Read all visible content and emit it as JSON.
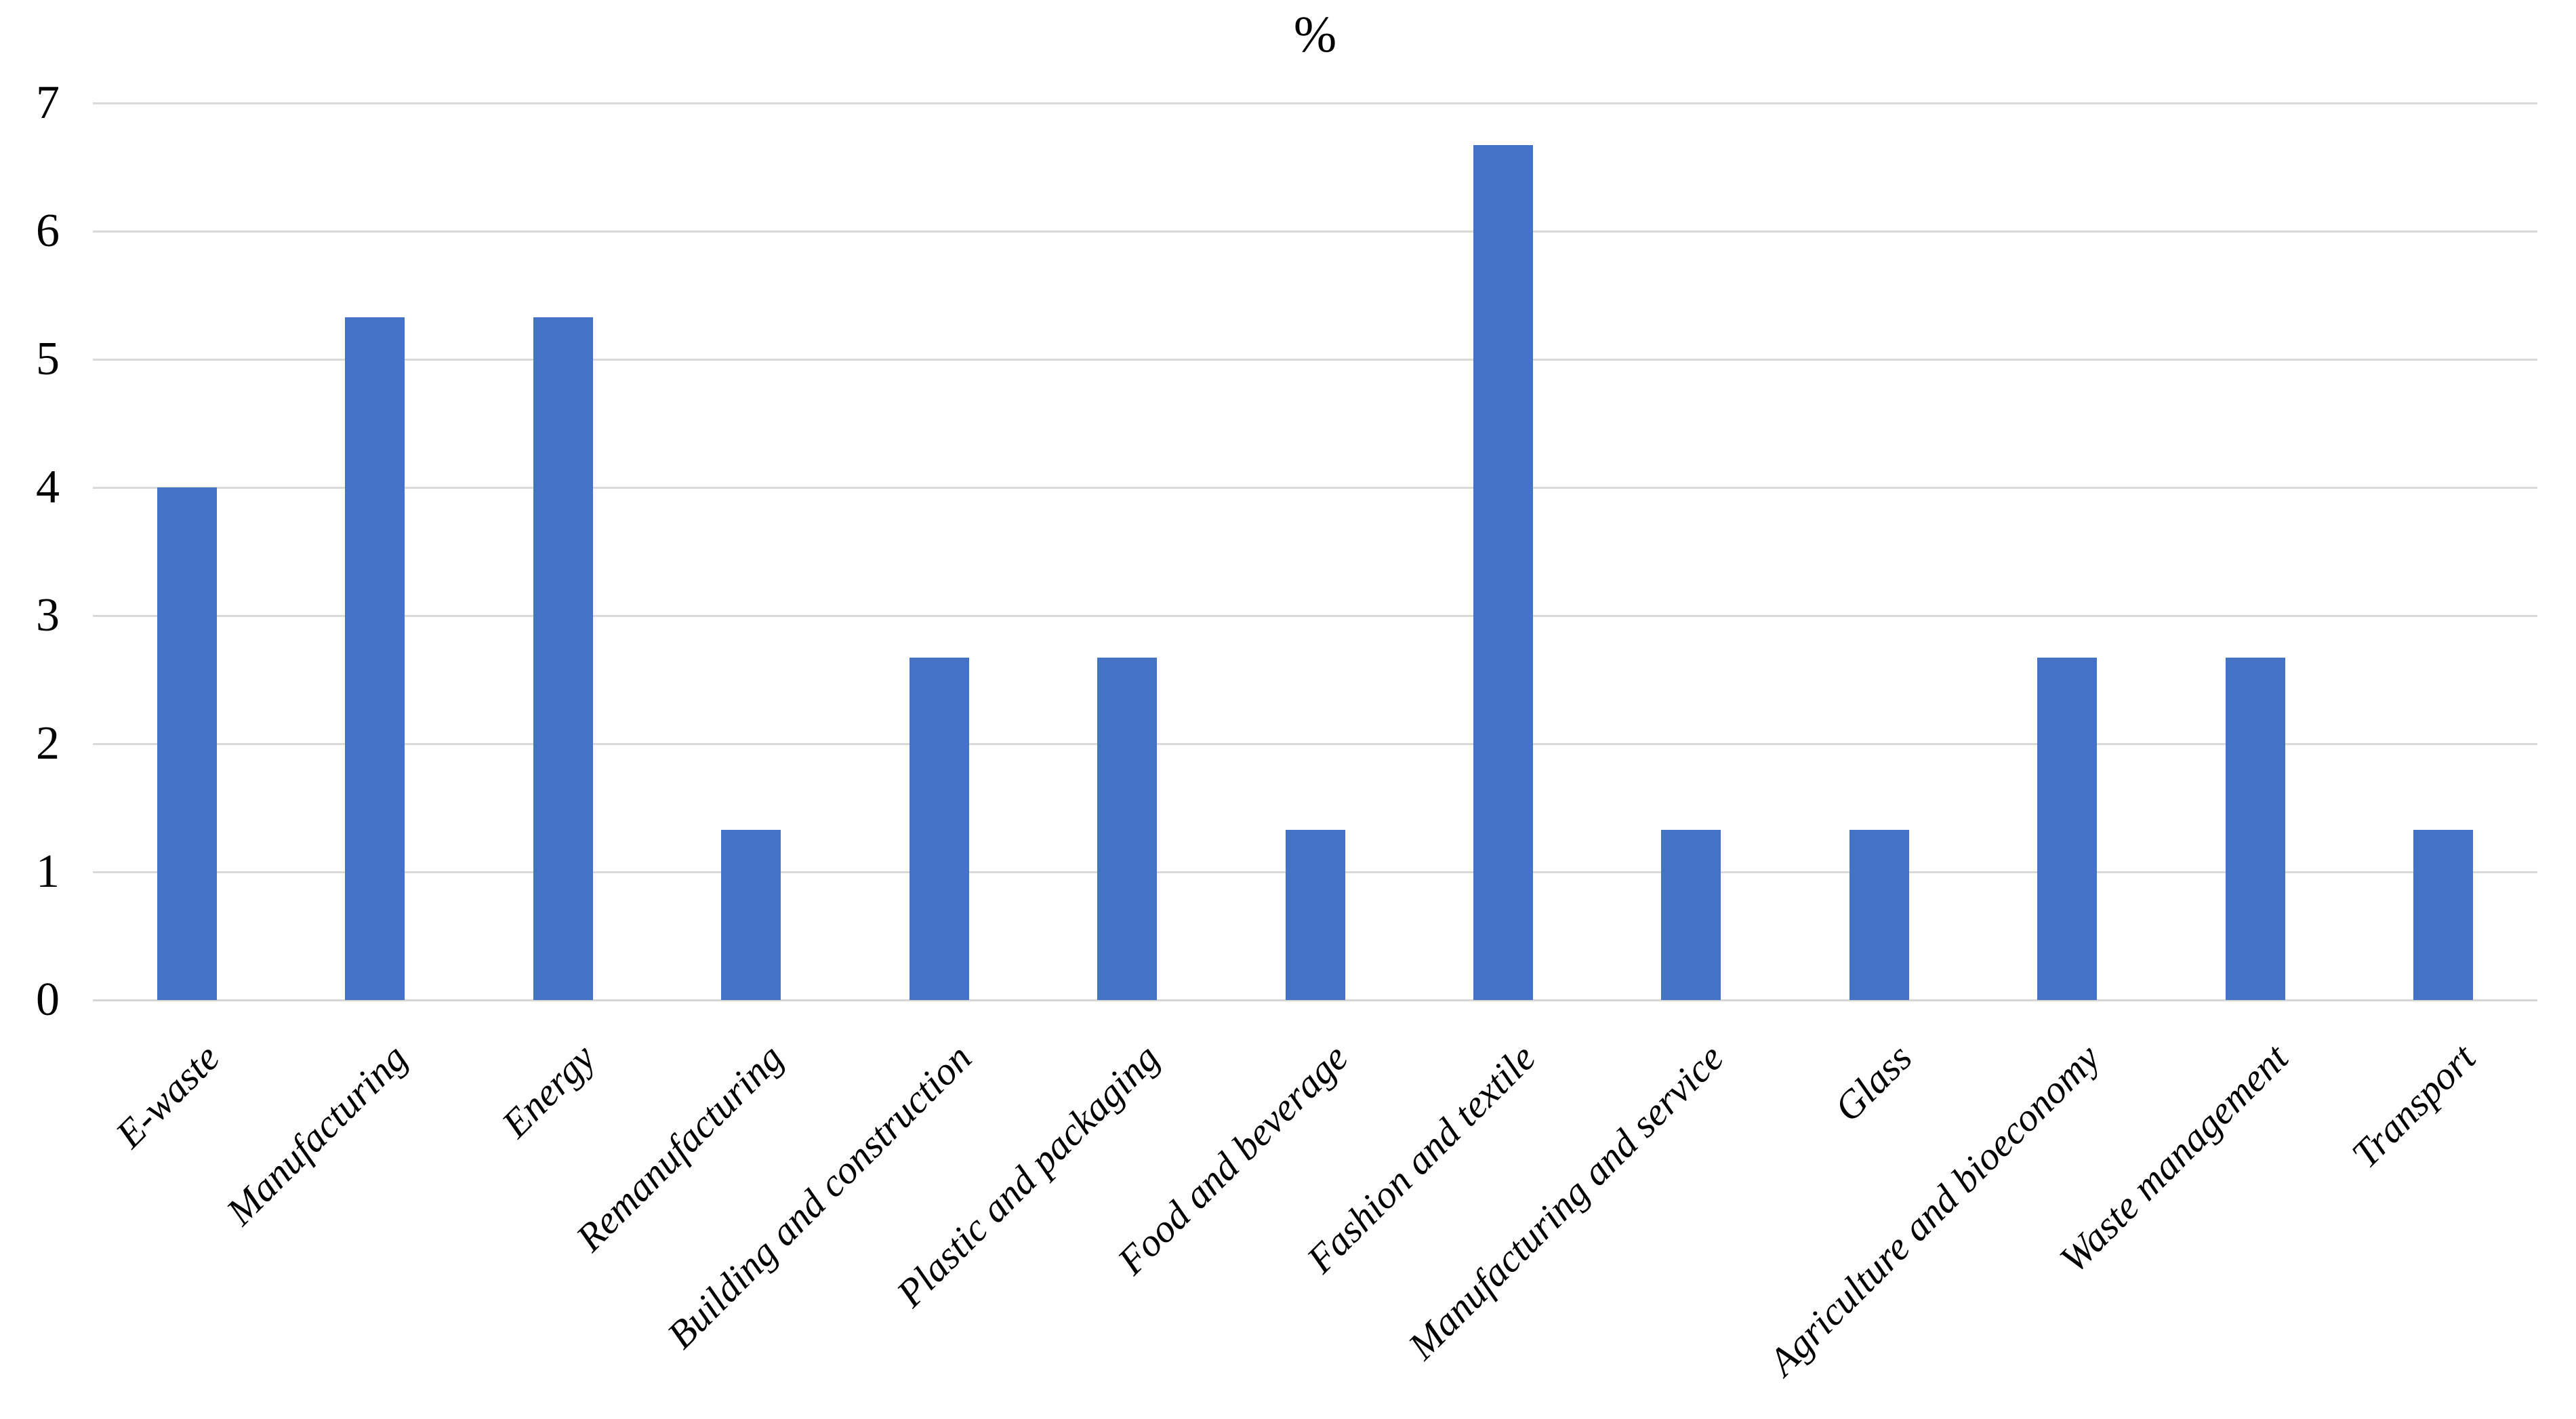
{
  "chart_data": {
    "type": "bar",
    "title": "%",
    "categories": [
      "E-waste",
      "Manufacturing",
      "Energy",
      "Remanufacturing",
      "Building and construction",
      "Plastic and packaging",
      "Food and beverage",
      "Fashion and textile",
      "Manufacturing and service",
      "Glass",
      "Agriculture and bioeconomy",
      "Waste management",
      "Transport"
    ],
    "values": [
      4,
      5.33,
      5.33,
      1.33,
      2.67,
      2.67,
      1.33,
      6.67,
      1.33,
      1.33,
      2.67,
      2.67,
      1.33
    ],
    "xlabel": "",
    "ylabel": "",
    "ylim": [
      0,
      7
    ],
    "yticks": [
      0,
      1,
      2,
      3,
      4,
      5,
      6,
      7
    ],
    "grid": "horizontal",
    "legend": "none",
    "bar_color": "#4472C4",
    "gridline_color": "#D9D9D9",
    "axis_line_color": "#D6D6D6",
    "text_color": "#000000",
    "background_color": "#FFFFFF"
  }
}
